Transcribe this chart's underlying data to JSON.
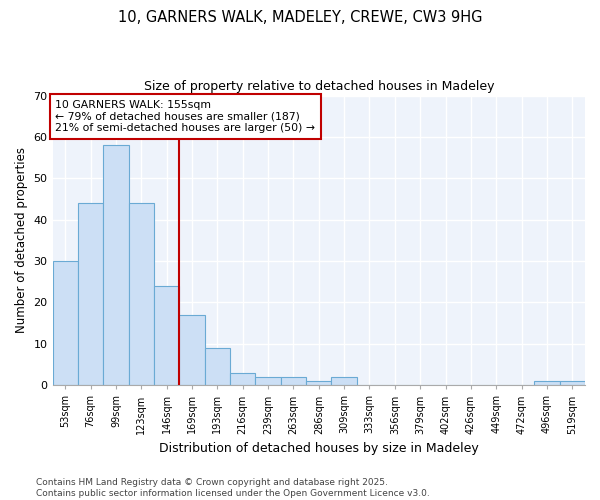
{
  "title1": "10, GARNERS WALK, MADELEY, CREWE, CW3 9HG",
  "title2": "Size of property relative to detached houses in Madeley",
  "xlabel": "Distribution of detached houses by size in Madeley",
  "ylabel": "Number of detached properties",
  "bar_values": [
    30,
    44,
    58,
    44,
    24,
    17,
    9,
    3,
    2,
    2,
    1,
    2,
    0,
    0,
    0,
    0,
    0,
    0,
    0,
    1,
    1
  ],
  "bin_labels": [
    "53sqm",
    "76sqm",
    "99sqm",
    "123sqm",
    "146sqm",
    "169sqm",
    "193sqm",
    "216sqm",
    "239sqm",
    "263sqm",
    "286sqm",
    "309sqm",
    "333sqm",
    "356sqm",
    "379sqm",
    "402sqm",
    "426sqm",
    "449sqm",
    "472sqm",
    "496sqm",
    "519sqm"
  ],
  "bar_color": "#ccdff5",
  "bar_edge_color": "#6aaad4",
  "bg_color": "#ffffff",
  "plot_bg_color": "#eef3fb",
  "grid_color": "#ffffff",
  "annotation_box_text": "10 GARNERS WALK: 155sqm\n← 79% of detached houses are smaller (187)\n21% of semi-detached houses are larger (50) →",
  "red_line_x": 4.5,
  "annotation_box_color": "#ffffff",
  "annotation_box_edge": "#c00000",
  "footer_text": "Contains HM Land Registry data © Crown copyright and database right 2025.\nContains public sector information licensed under the Open Government Licence v3.0.",
  "ylim": [
    0,
    70
  ],
  "yticks": [
    0,
    10,
    20,
    30,
    40,
    50,
    60,
    70
  ]
}
